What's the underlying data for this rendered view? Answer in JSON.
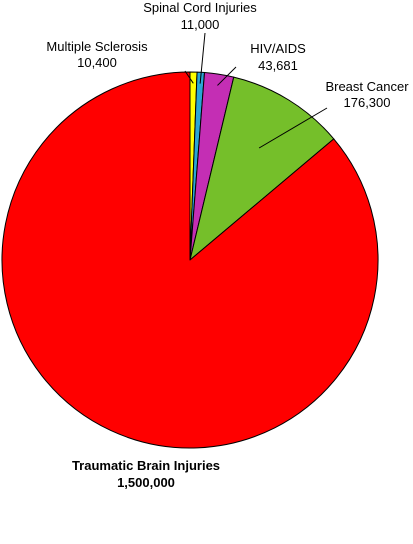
{
  "chart_data": {
    "type": "pie",
    "title": "",
    "start_angle_deg": 0,
    "direction": "clockwise",
    "slices": [
      {
        "name": "Multiple Sclerosis",
        "value": 10400,
        "value_label": "10,400",
        "color": "#ffff00"
      },
      {
        "name": "Spinal Cord Injuries",
        "value": 11000,
        "value_label": "11,000",
        "color": "#2aa6d6"
      },
      {
        "name": "HIV/AIDS",
        "value": 43681,
        "value_label": "43,681",
        "color": "#c42eb4"
      },
      {
        "name": "Breast Cancer",
        "value": 176300,
        "value_label": "176,300",
        "color": "#75bf2a"
      },
      {
        "name": "Traumatic Brain Injuries",
        "value": 1500000,
        "value_label": "1,500,000",
        "color": "#ff0000"
      }
    ],
    "legend": "none",
    "labels": "outside with leader lines"
  }
}
